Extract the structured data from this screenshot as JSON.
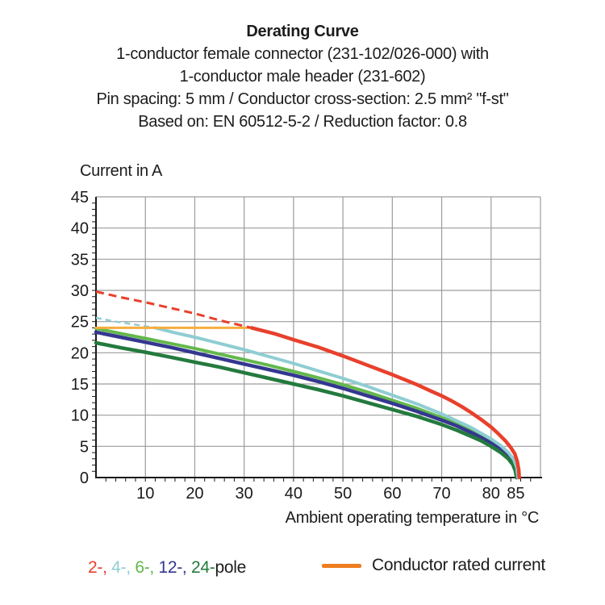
{
  "title": {
    "heading": "Derating Curve",
    "lines": [
      "1-conductor female connector (231-102/026-000) with",
      "1-conductor male header (231-602)",
      "Pin spacing: 5 mm / Conductor cross-section: 2.5 mm² \"f-st\"",
      "Based on: EN 60512-5-2 / Reduction factor: 0.8"
    ]
  },
  "chart_data": {
    "type": "line",
    "title": "Derating Curve",
    "xlabel": "Ambient operating temperature in °C",
    "ylabel": "Current in A",
    "xlim": [
      0,
      90
    ],
    "ylim": [
      0,
      45
    ],
    "x_ticks": [
      10,
      20,
      30,
      40,
      50,
      60,
      70,
      80,
      85
    ],
    "y_ticks": [
      0,
      5,
      10,
      15,
      20,
      25,
      30,
      35,
      40,
      45
    ],
    "x_gridlines": [
      10,
      20,
      30,
      40,
      50,
      60,
      70,
      80,
      90
    ],
    "y_gridlines": [
      5,
      10,
      15,
      20,
      25,
      30,
      35,
      40,
      45
    ],
    "x_minor_step": 2,
    "y_minor_step": 1,
    "grid": true,
    "grid_color": "#9c9c9c",
    "axis_color": "#1a1a1a",
    "legend_position": "bottom",
    "series": [
      {
        "name": "6-pole",
        "color": "#63B84C",
        "style": "solid",
        "width": 4,
        "points": [
          [
            0,
            23.9
          ],
          [
            5,
            23.1
          ],
          [
            10,
            22.3
          ],
          [
            15,
            21.5
          ],
          [
            20,
            20.7
          ],
          [
            25,
            19.8
          ],
          [
            30,
            18.9
          ],
          [
            35,
            18.0
          ],
          [
            40,
            17.0
          ],
          [
            45,
            16.0
          ],
          [
            50,
            14.9
          ],
          [
            55,
            13.7
          ],
          [
            60,
            12.4
          ],
          [
            65,
            11.1
          ],
          [
            70,
            9.6
          ],
          [
            73,
            8.7
          ],
          [
            76,
            7.6
          ],
          [
            78,
            6.8
          ],
          [
            80,
            5.9
          ],
          [
            82,
            4.8
          ],
          [
            83.5,
            3.7
          ],
          [
            84.6,
            2.5
          ],
          [
            85.1,
            1.3
          ],
          [
            85.35,
            0
          ]
        ]
      },
      {
        "name": "12-pole",
        "color": "#34378F",
        "style": "solid",
        "width": 4.5,
        "points": [
          [
            0,
            23.3
          ],
          [
            5,
            22.5
          ],
          [
            10,
            21.7
          ],
          [
            15,
            20.9
          ],
          [
            20,
            20.0
          ],
          [
            25,
            19.1
          ],
          [
            30,
            18.2
          ],
          [
            35,
            17.3
          ],
          [
            40,
            16.4
          ],
          [
            45,
            15.4
          ],
          [
            50,
            14.3
          ],
          [
            55,
            13.1
          ],
          [
            60,
            11.9
          ],
          [
            65,
            10.6
          ],
          [
            70,
            9.2
          ],
          [
            73,
            8.3
          ],
          [
            76,
            7.2
          ],
          [
            78,
            6.4
          ],
          [
            80,
            5.5
          ],
          [
            82,
            4.5
          ],
          [
            83.5,
            3.4
          ],
          [
            84.5,
            2.3
          ],
          [
            85,
            1.2
          ],
          [
            85.25,
            0
          ]
        ]
      },
      {
        "name": "24-pole",
        "color": "#247A3E",
        "style": "solid",
        "width": 4.5,
        "points": [
          [
            0,
            21.6
          ],
          [
            5,
            20.8
          ],
          [
            10,
            20.1
          ],
          [
            15,
            19.3
          ],
          [
            20,
            18.5
          ],
          [
            25,
            17.7
          ],
          [
            30,
            16.8
          ],
          [
            35,
            15.9
          ],
          [
            40,
            15.0
          ],
          [
            45,
            14.1
          ],
          [
            50,
            13.1
          ],
          [
            55,
            12.0
          ],
          [
            60,
            10.9
          ],
          [
            65,
            9.8
          ],
          [
            70,
            8.5
          ],
          [
            73,
            7.6
          ],
          [
            76,
            6.6
          ],
          [
            78,
            5.9
          ],
          [
            80,
            5.0
          ],
          [
            82,
            4.0
          ],
          [
            83.5,
            3.0
          ],
          [
            84.4,
            2.1
          ],
          [
            84.9,
            1.1
          ],
          [
            85.15,
            0
          ]
        ]
      },
      {
        "name": "4-pole",
        "color": "#8FCDD3",
        "style": "solid",
        "width": 4,
        "points": [
          [
            12,
            24.0
          ],
          [
            16,
            23.2
          ],
          [
            20,
            22.5
          ],
          [
            25,
            21.5
          ],
          [
            30,
            20.5
          ],
          [
            35,
            19.4
          ],
          [
            40,
            18.3
          ],
          [
            45,
            17.1
          ],
          [
            50,
            15.9
          ],
          [
            55,
            14.6
          ],
          [
            60,
            13.2
          ],
          [
            65,
            11.8
          ],
          [
            70,
            10.2
          ],
          [
            73,
            9.1
          ],
          [
            76,
            8.0
          ],
          [
            78,
            7.1
          ],
          [
            80,
            6.2
          ],
          [
            82,
            5.1
          ],
          [
            83.5,
            4.0
          ],
          [
            84.6,
            2.9
          ],
          [
            85.2,
            1.6
          ],
          [
            85.45,
            0
          ]
        ]
      },
      {
        "name": "4-pole (dashed segment)",
        "color": "#8FCDD3",
        "style": "dashed",
        "width": 2.5,
        "dash": "7 5",
        "points": [
          [
            0,
            25.6
          ],
          [
            4,
            25.0
          ],
          [
            8,
            24.5
          ],
          [
            12,
            24.0
          ]
        ]
      },
      {
        "name": "Conductor rated current",
        "color": "#F6AD3E",
        "style": "solid",
        "width": 3,
        "points": [
          [
            0,
            24
          ],
          [
            31.5,
            24
          ]
        ]
      },
      {
        "name": "2-pole (dashed segment)",
        "color": "#E8402C",
        "style": "dashed",
        "width": 3,
        "dash": "10 6",
        "points": [
          [
            0,
            29.8
          ],
          [
            5,
            28.9
          ],
          [
            10,
            28.1
          ],
          [
            15,
            27.2
          ],
          [
            20,
            26.3
          ],
          [
            25,
            25.2
          ],
          [
            31.5,
            24.0
          ]
        ]
      },
      {
        "name": "2-pole",
        "color": "#E8402C",
        "style": "solid",
        "width": 4.5,
        "points": [
          [
            31.5,
            24.0
          ],
          [
            36,
            23.1
          ],
          [
            40,
            22.1
          ],
          [
            45,
            20.9
          ],
          [
            50,
            19.5
          ],
          [
            55,
            18.0
          ],
          [
            60,
            16.5
          ],
          [
            65,
            14.9
          ],
          [
            68,
            13.8
          ],
          [
            70,
            13.1
          ],
          [
            72,
            12.3
          ],
          [
            74,
            11.4
          ],
          [
            76,
            10.4
          ],
          [
            78,
            9.3
          ],
          [
            80,
            8.1
          ],
          [
            81.5,
            7.0
          ],
          [
            83,
            5.8
          ],
          [
            84,
            4.8
          ],
          [
            84.8,
            3.8
          ],
          [
            85.3,
            2.6
          ],
          [
            85.6,
            1.2
          ],
          [
            85.7,
            0
          ]
        ]
      }
    ]
  },
  "legend": {
    "poles": [
      {
        "label": "2-,",
        "color": "#E8402C"
      },
      {
        "label": "4-,",
        "color": "#8FCDD3"
      },
      {
        "label": "6-,",
        "color": "#63B84C"
      },
      {
        "label": "12-,",
        "color": "#34378F"
      },
      {
        "label": "24-",
        "color": "#247A3E"
      }
    ],
    "pole_suffix": "pole",
    "rated": {
      "label": "Conductor rated current",
      "swatch_color": "#EE7E20"
    }
  }
}
